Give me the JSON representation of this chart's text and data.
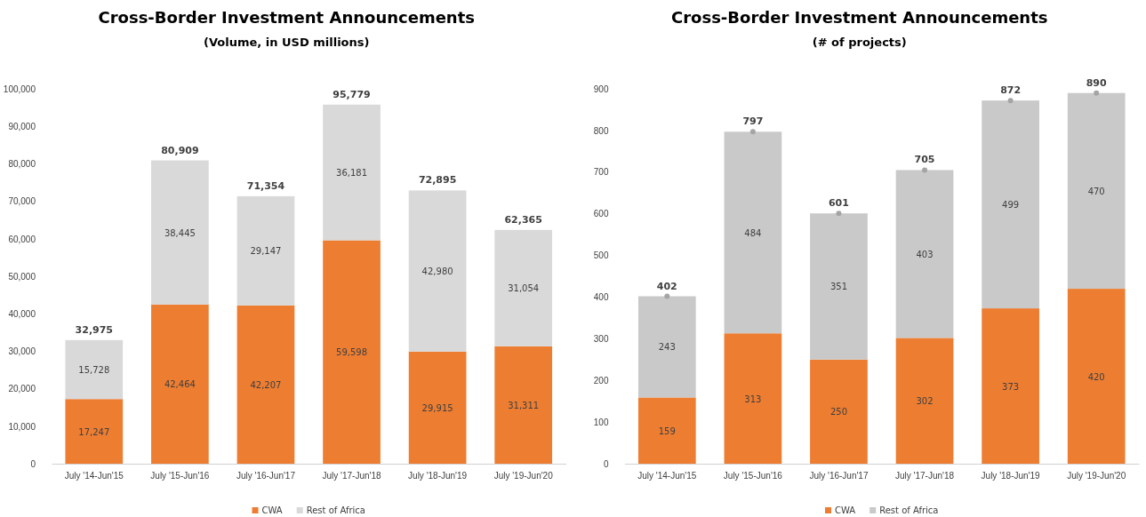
{
  "chart_data": [
    {
      "type": "bar",
      "title": "Cross-Border Investment Announcements",
      "subtitle": "(Volume, in USD millions)",
      "stacked": true,
      "legend": "bottom",
      "categories": [
        "July '14-Jun'15",
        "July '15-Jun'16",
        "July '16-Jun'17",
        "July '17-Jun'18",
        "July '18-Jun'19",
        "July '19-Jun'20"
      ],
      "ylim": [
        0,
        100000
      ],
      "yticks": [
        0,
        {
          "value": 10000,
          "label": "10,000"
        },
        {
          "value": 20000,
          "label": "20,000"
        },
        {
          "value": 30000,
          "label": "30,000"
        },
        {
          "value": 40000,
          "label": "40,000"
        },
        {
          "value": 50000,
          "label": "50,000"
        },
        {
          "value": 60000,
          "label": "60,000"
        },
        {
          "value": 70000,
          "label": "70,000"
        },
        {
          "value": 80000,
          "label": "80,000"
        },
        {
          "value": 90000,
          "label": "90,000"
        },
        {
          "value": 100000,
          "label": "100,000"
        }
      ],
      "series": [
        {
          "name": "CWA",
          "color": "#ed7d31",
          "values": [
            17247,
            42464,
            42207,
            59598,
            29915,
            31311
          ],
          "value_labels": [
            "17,247",
            "42,464",
            "42,207",
            "59,598",
            "29,915",
            "31,311"
          ]
        },
        {
          "name": "Rest of Africa",
          "color": "#d9d9d9",
          "values": [
            15728,
            38445,
            29147,
            36181,
            42980,
            31054
          ],
          "value_labels": [
            "15,728",
            "38,445",
            "29,147",
            "36,181",
            "42,980",
            "31,054"
          ]
        }
      ],
      "totals": [
        "32,975",
        "80,909",
        "71,354",
        "95,779",
        "72,895",
        "62,365"
      ]
    },
    {
      "type": "bar",
      "title": "Cross-Border Investment Announcements",
      "subtitle": "(# of projects)",
      "stacked": true,
      "legend": "bottom",
      "categories": [
        "July '14-Jun'15",
        "July '15-Jun'16",
        "July '16-Jun'17",
        "July '17-Jun'18",
        "July '18-Jun'19",
        "July '19-Jun'20"
      ],
      "ylim": [
        0,
        900
      ],
      "yticks": [
        0,
        100,
        200,
        300,
        400,
        500,
        600,
        700,
        800,
        900
      ],
      "series": [
        {
          "name": "CWA",
          "color": "#ed7d31",
          "values": [
            159,
            313,
            250,
            302,
            373,
            420
          ],
          "value_labels": [
            "159",
            "313",
            "250",
            "302",
            "373",
            "420"
          ]
        },
        {
          "name": "Rest of Africa",
          "color": "#c9c9c9",
          "values": [
            243,
            484,
            351,
            403,
            499,
            470
          ],
          "value_labels": [
            "243",
            "484",
            "351",
            "403",
            "499",
            "470"
          ]
        },
        {
          "type": "scatter",
          "color": "#a5a5a5",
          "marker": "circle",
          "x": [
            "July '14-Jun'15",
            "July '15-Jun'16",
            "July '16-Jun'17",
            "July '17-Jun'18",
            "July '18-Jun'19",
            "July '19-Jun'20"
          ],
          "values": [
            402,
            797,
            601,
            705,
            872,
            890
          ]
        }
      ],
      "totals": [
        "402",
        "797",
        "601",
        "705",
        "872",
        "890"
      ]
    }
  ]
}
